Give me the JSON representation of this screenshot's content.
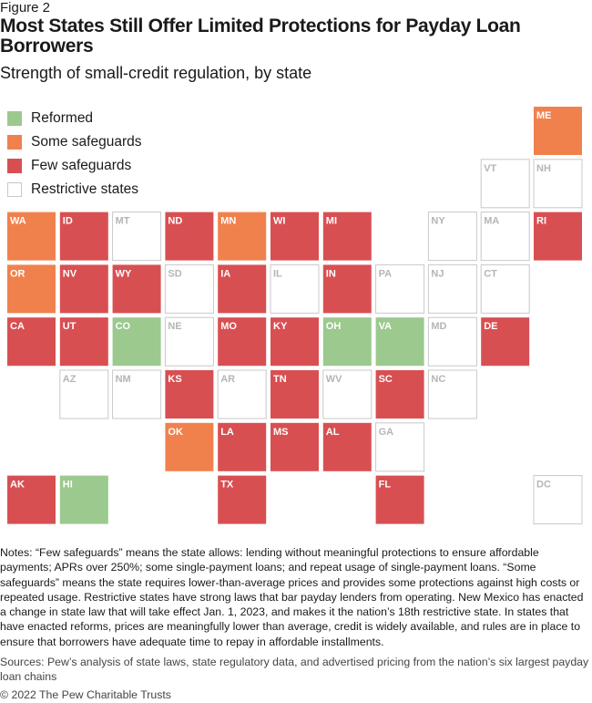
{
  "figure_label": "Figure 2",
  "chart_data": {
    "type": "tile-map",
    "title": "Most States Still Offer Limited Protections for Payday Loan Borrowers",
    "subtitle": "Strength of small-credit regulation, by state",
    "categories": [
      {
        "key": "reformed",
        "label": "Reformed",
        "color": "#9bc98e"
      },
      {
        "key": "some",
        "label": "Some safeguards",
        "color": "#f0814d"
      },
      {
        "key": "few",
        "label": "Few safeguards",
        "color": "#d84f52"
      },
      {
        "key": "restrictive",
        "label": "Restrictive states",
        "color": "#ffffff"
      }
    ],
    "states": [
      {
        "abbr": "ME",
        "row": 0,
        "col": 10,
        "category": "some"
      },
      {
        "abbr": "VT",
        "row": 1,
        "col": 9,
        "category": "restrictive"
      },
      {
        "abbr": "NH",
        "row": 1,
        "col": 10,
        "category": "restrictive"
      },
      {
        "abbr": "WA",
        "row": 2,
        "col": 0,
        "category": "some"
      },
      {
        "abbr": "ID",
        "row": 2,
        "col": 1,
        "category": "few"
      },
      {
        "abbr": "MT",
        "row": 2,
        "col": 2,
        "category": "restrictive"
      },
      {
        "abbr": "ND",
        "row": 2,
        "col": 3,
        "category": "few"
      },
      {
        "abbr": "MN",
        "row": 2,
        "col": 4,
        "category": "some"
      },
      {
        "abbr": "WI",
        "row": 2,
        "col": 5,
        "category": "few"
      },
      {
        "abbr": "MI",
        "row": 2,
        "col": 6,
        "category": "few"
      },
      {
        "abbr": "NY",
        "row": 2,
        "col": 8,
        "category": "restrictive"
      },
      {
        "abbr": "MA",
        "row": 2,
        "col": 9,
        "category": "restrictive"
      },
      {
        "abbr": "RI",
        "row": 2,
        "col": 10,
        "category": "few"
      },
      {
        "abbr": "OR",
        "row": 3,
        "col": 0,
        "category": "some"
      },
      {
        "abbr": "NV",
        "row": 3,
        "col": 1,
        "category": "few"
      },
      {
        "abbr": "WY",
        "row": 3,
        "col": 2,
        "category": "few"
      },
      {
        "abbr": "SD",
        "row": 3,
        "col": 3,
        "category": "restrictive"
      },
      {
        "abbr": "IA",
        "row": 3,
        "col": 4,
        "category": "few"
      },
      {
        "abbr": "IL",
        "row": 3,
        "col": 5,
        "category": "restrictive"
      },
      {
        "abbr": "IN",
        "row": 3,
        "col": 6,
        "category": "few"
      },
      {
        "abbr": "PA",
        "row": 3,
        "col": 7,
        "category": "restrictive"
      },
      {
        "abbr": "NJ",
        "row": 3,
        "col": 8,
        "category": "restrictive"
      },
      {
        "abbr": "CT",
        "row": 3,
        "col": 9,
        "category": "restrictive"
      },
      {
        "abbr": "CA",
        "row": 4,
        "col": 0,
        "category": "few"
      },
      {
        "abbr": "UT",
        "row": 4,
        "col": 1,
        "category": "few"
      },
      {
        "abbr": "CO",
        "row": 4,
        "col": 2,
        "category": "reformed"
      },
      {
        "abbr": "NE",
        "row": 4,
        "col": 3,
        "category": "restrictive"
      },
      {
        "abbr": "MO",
        "row": 4,
        "col": 4,
        "category": "few"
      },
      {
        "abbr": "KY",
        "row": 4,
        "col": 5,
        "category": "few"
      },
      {
        "abbr": "OH",
        "row": 4,
        "col": 6,
        "category": "reformed"
      },
      {
        "abbr": "VA",
        "row": 4,
        "col": 7,
        "category": "reformed"
      },
      {
        "abbr": "MD",
        "row": 4,
        "col": 8,
        "category": "restrictive"
      },
      {
        "abbr": "DE",
        "row": 4,
        "col": 9,
        "category": "few"
      },
      {
        "abbr": "AZ",
        "row": 5,
        "col": 1,
        "category": "restrictive"
      },
      {
        "abbr": "NM",
        "row": 5,
        "col": 2,
        "category": "restrictive"
      },
      {
        "abbr": "KS",
        "row": 5,
        "col": 3,
        "category": "few"
      },
      {
        "abbr": "AR",
        "row": 5,
        "col": 4,
        "category": "restrictive"
      },
      {
        "abbr": "TN",
        "row": 5,
        "col": 5,
        "category": "few"
      },
      {
        "abbr": "WV",
        "row": 5,
        "col": 6,
        "category": "restrictive"
      },
      {
        "abbr": "SC",
        "row": 5,
        "col": 7,
        "category": "few"
      },
      {
        "abbr": "NC",
        "row": 5,
        "col": 8,
        "category": "restrictive"
      },
      {
        "abbr": "OK",
        "row": 6,
        "col": 3,
        "category": "some"
      },
      {
        "abbr": "LA",
        "row": 6,
        "col": 4,
        "category": "few"
      },
      {
        "abbr": "MS",
        "row": 6,
        "col": 5,
        "category": "few"
      },
      {
        "abbr": "AL",
        "row": 6,
        "col": 6,
        "category": "few"
      },
      {
        "abbr": "GA",
        "row": 6,
        "col": 7,
        "category": "restrictive"
      },
      {
        "abbr": "AK",
        "row": 7,
        "col": 0,
        "category": "few"
      },
      {
        "abbr": "HI",
        "row": 7,
        "col": 1,
        "category": "reformed"
      },
      {
        "abbr": "TX",
        "row": 7,
        "col": 4,
        "category": "few"
      },
      {
        "abbr": "FL",
        "row": 7,
        "col": 7,
        "category": "few"
      },
      {
        "abbr": "DC",
        "row": 7,
        "col": 10,
        "category": "restrictive"
      }
    ]
  },
  "notes": "Notes: “Few safeguards” means the state allows: lending without meaningful protections to ensure affordable payments; APRs over 250%; some single-payment loans; and repeat usage of single-payment loans. “Some safeguards” means the state requires lower-than-average prices and provides some protections against high costs or repeated usage. Restrictive states have strong laws that bar payday lenders from operating. New Mexico has enacted a change in state law that will take effect Jan. 1, 2023, and makes it the nation’s 18th restrictive state. In states that have enacted reforms, prices are meaningfully lower than average, credit is widely available, and rules are in place to ensure that borrowers have adequate time to repay in affordable installments.",
  "sources": "Sources: Pew’s analysis of state laws, state regulatory data, and advertised pricing from the nation’s six largest payday loan chains",
  "copyright": "© 2022 The Pew Charitable Trusts",
  "colors": {
    "tile_border": "#c8c8c8",
    "label_on_color": "#ffffff",
    "label_on_white": "#b5b5b5"
  }
}
